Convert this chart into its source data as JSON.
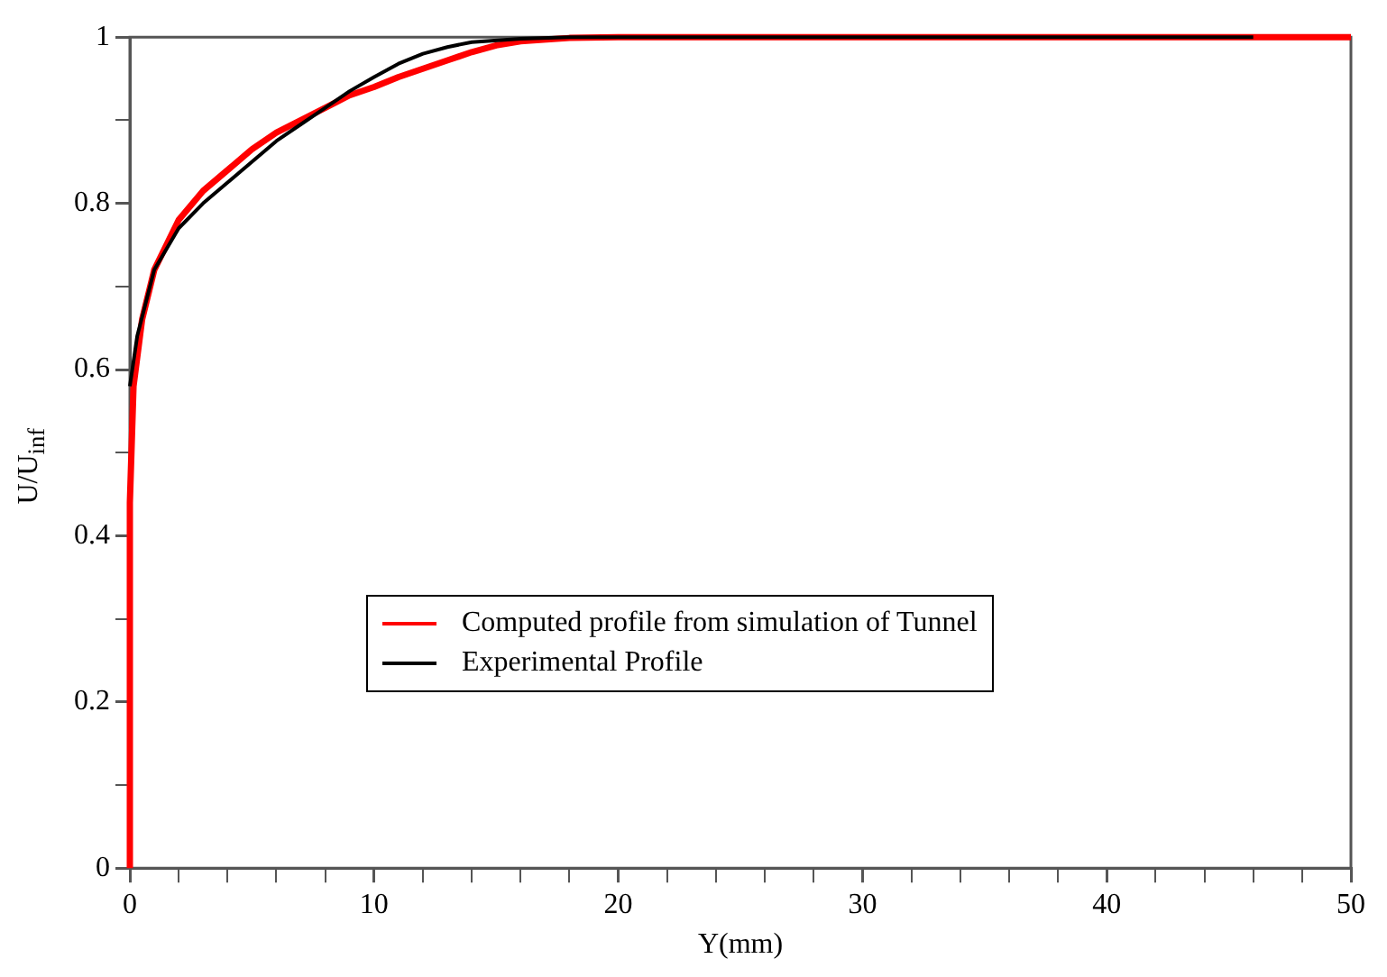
{
  "chart_data": {
    "type": "line",
    "xlabel": "Y(mm)",
    "ylabel": "U/U$_{inf}$",
    "xlim": [
      0,
      50
    ],
    "ylim": [
      0,
      1
    ],
    "xticks": [
      0,
      {
        "value": 2,
        "label": null
      },
      {
        "value": 4,
        "label": null
      },
      {
        "value": 6,
        "label": null
      },
      {
        "value": 8,
        "label": null
      },
      10,
      {
        "value": 12,
        "label": null
      },
      {
        "value": 14,
        "label": null
      },
      {
        "value": 16,
        "label": null
      },
      {
        "value": 18,
        "label": null
      },
      20,
      {
        "value": 22,
        "label": null
      },
      {
        "value": 24,
        "label": null
      },
      {
        "value": 26,
        "label": null
      },
      {
        "value": 28,
        "label": null
      },
      30,
      {
        "value": 32,
        "label": null
      },
      {
        "value": 34,
        "label": null
      },
      {
        "value": 36,
        "label": null
      },
      {
        "value": 38,
        "label": null
      },
      40,
      {
        "value": 42,
        "label": null
      },
      {
        "value": 44,
        "label": null
      },
      {
        "value": 46,
        "label": null
      },
      {
        "value": 48,
        "label": null
      },
      50
    ],
    "yticks": [
      0,
      {
        "value": 0.1,
        "label": null
      },
      0.2,
      {
        "value": 0.3,
        "label": null
      },
      0.4,
      {
        "value": 0.5,
        "label": null
      },
      0.6,
      {
        "value": 0.7,
        "label": null
      },
      0.8,
      {
        "value": 0.9,
        "label": null
      },
      1
    ],
    "grid": false,
    "legend": "center",
    "marker": "none",
    "line_style": "solid",
    "series": [
      {
        "name": "Computed profile from simulation of Tunnel",
        "color": "#ff0000",
        "x": [
          0,
          0,
          0.15,
          0.5,
          1,
          2,
          3,
          4,
          5,
          6,
          7,
          8,
          9,
          10,
          11,
          12,
          13,
          14,
          15,
          16,
          18,
          20,
          50
        ],
        "values": [
          0,
          0.44,
          0.58,
          0.66,
          0.72,
          0.78,
          0.815,
          0.84,
          0.865,
          0.885,
          0.9,
          0.915,
          0.93,
          0.94,
          0.952,
          0.962,
          0.972,
          0.982,
          0.99,
          0.995,
          0.999,
          1,
          1
        ]
      },
      {
        "name": "Experimental Profile",
        "color": "#000000",
        "x": [
          0,
          0.3,
          1,
          2,
          3,
          4,
          5,
          6,
          7,
          8,
          9,
          10,
          11,
          12,
          13,
          14,
          16,
          18,
          46
        ],
        "values": [
          0.58,
          0.64,
          0.72,
          0.77,
          0.8,
          0.825,
          0.85,
          0.875,
          0.895,
          0.915,
          0.935,
          0.952,
          0.968,
          0.98,
          0.988,
          0.994,
          0.998,
          1,
          1
        ]
      }
    ]
  }
}
